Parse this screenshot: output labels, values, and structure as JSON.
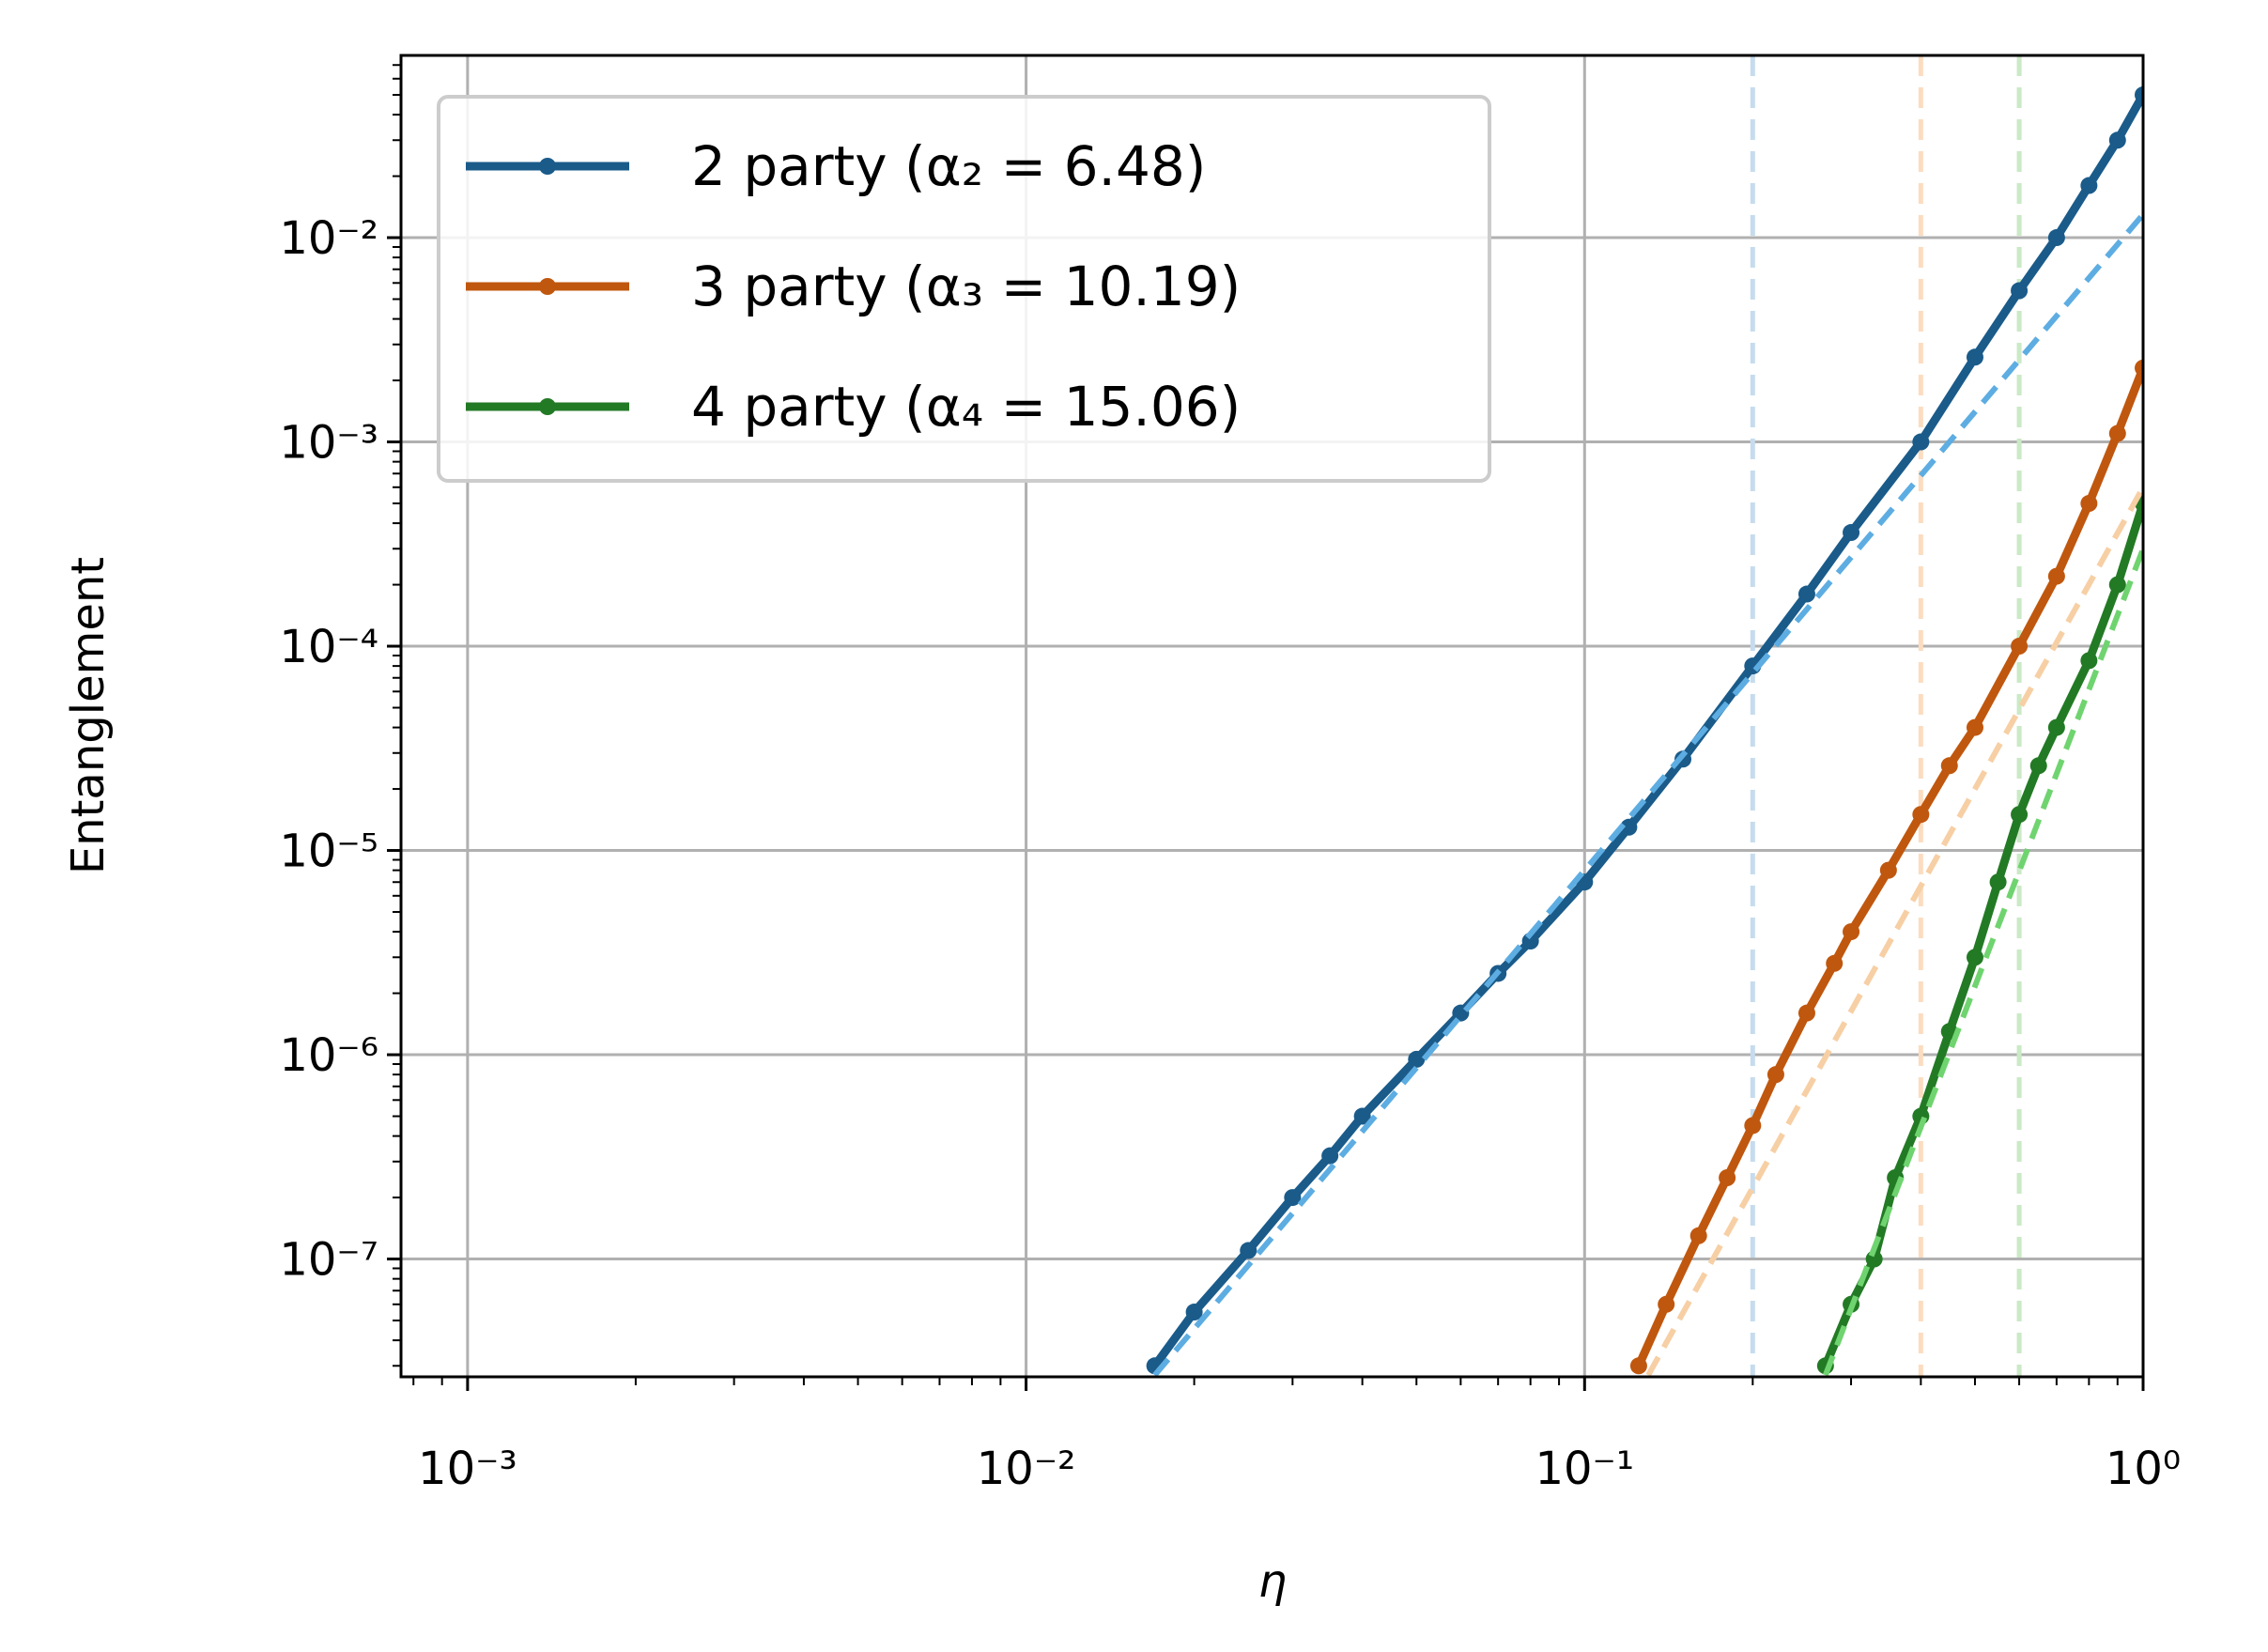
{
  "chart_data": {
    "type": "line",
    "x_label": "η",
    "y_label": "Entanglement",
    "xscale": "log",
    "yscale": "log",
    "grid": true,
    "legend_position": "upper left",
    "xlim": [
      0.00076,
      1
    ],
    "ylim": [
      2.65e-08,
      0.078
    ],
    "xticks": [
      {
        "value": 0.001,
        "label": "10⁻³"
      },
      {
        "value": 0.01,
        "label": "10⁻²"
      },
      {
        "value": 0.1,
        "label": "10⁻¹"
      },
      {
        "value": 1,
        "label": "10⁰"
      }
    ],
    "yticks": [
      {
        "value": 1e-07,
        "label": "10⁻⁷"
      },
      {
        "value": 1e-06,
        "label": "10⁻⁶"
      },
      {
        "value": 1e-05,
        "label": "10⁻⁵"
      },
      {
        "value": 0.0001,
        "label": "10⁻⁴"
      },
      {
        "value": 0.001,
        "label": "10⁻³"
      },
      {
        "value": 0.01,
        "label": "10⁻²"
      }
    ],
    "series": [
      {
        "name": "2 party (α₂ = 6.48)",
        "color": "#1a5b8a",
        "x": [
          0.017,
          0.02,
          0.025,
          0.03,
          0.035,
          0.04,
          0.05,
          0.06,
          0.07,
          0.08,
          0.1,
          0.12,
          0.15,
          0.2,
          0.25,
          0.3,
          0.4,
          0.5,
          0.6,
          0.7,
          0.8,
          0.9,
          1.0
        ],
        "values": [
          3e-08,
          5.5e-08,
          1.1e-07,
          2e-07,
          3.2e-07,
          5e-07,
          9.5e-07,
          1.6e-06,
          2.5e-06,
          3.6e-06,
          7e-06,
          1.3e-05,
          2.8e-05,
          8e-05,
          0.00018,
          0.00036,
          0.001,
          0.0026,
          0.0055,
          0.01,
          0.018,
          0.03,
          0.05
        ]
      },
      {
        "name": "3 party (α₃ = 10.19)",
        "color": "#c0570e",
        "x": [
          0.125,
          0.14,
          0.16,
          0.18,
          0.2,
          0.22,
          0.25,
          0.28,
          0.3,
          0.35,
          0.4,
          0.45,
          0.5,
          0.6,
          0.7,
          0.8,
          0.9,
          1.0
        ],
        "values": [
          3e-08,
          6e-08,
          1.3e-07,
          2.5e-07,
          4.5e-07,
          8e-07,
          1.6e-06,
          2.8e-06,
          4e-06,
          8e-06,
          1.5e-05,
          2.6e-05,
          4e-05,
          0.0001,
          0.00022,
          0.0005,
          0.0011,
          0.0023
        ]
      },
      {
        "name": "4 party (α₄ = 15.06)",
        "color": "#237a25",
        "x": [
          0.27,
          0.3,
          0.33,
          0.36,
          0.4,
          0.45,
          0.5,
          0.55,
          0.6,
          0.65,
          0.7,
          0.8,
          0.9,
          1.0
        ],
        "values": [
          3e-08,
          6e-08,
          1e-07,
          2.5e-07,
          5e-07,
          1.3e-06,
          3e-06,
          7e-06,
          1.5e-05,
          2.6e-05,
          4e-05,
          8.5e-05,
          0.0002,
          0.0005
        ]
      }
    ],
    "fit_lines": [
      {
        "color": "#5dade2",
        "x": [
          0.017,
          1
        ],
        "values": [
          2.7e-08,
          0.013
        ]
      },
      {
        "color": "#f7cfa4",
        "x": [
          0.13,
          1
        ],
        "values": [
          2.7e-08,
          0.0006
        ]
      },
      {
        "color": "#6fd46f",
        "x": [
          0.27,
          1
        ],
        "values": [
          2.7e-08,
          0.0003
        ]
      }
    ],
    "vlines": [
      {
        "value": 0.2,
        "color": "#c6dcee"
      },
      {
        "value": 0.4,
        "color": "#fcdcc0"
      },
      {
        "value": 0.6,
        "color": "#cbe9c6"
      }
    ]
  }
}
